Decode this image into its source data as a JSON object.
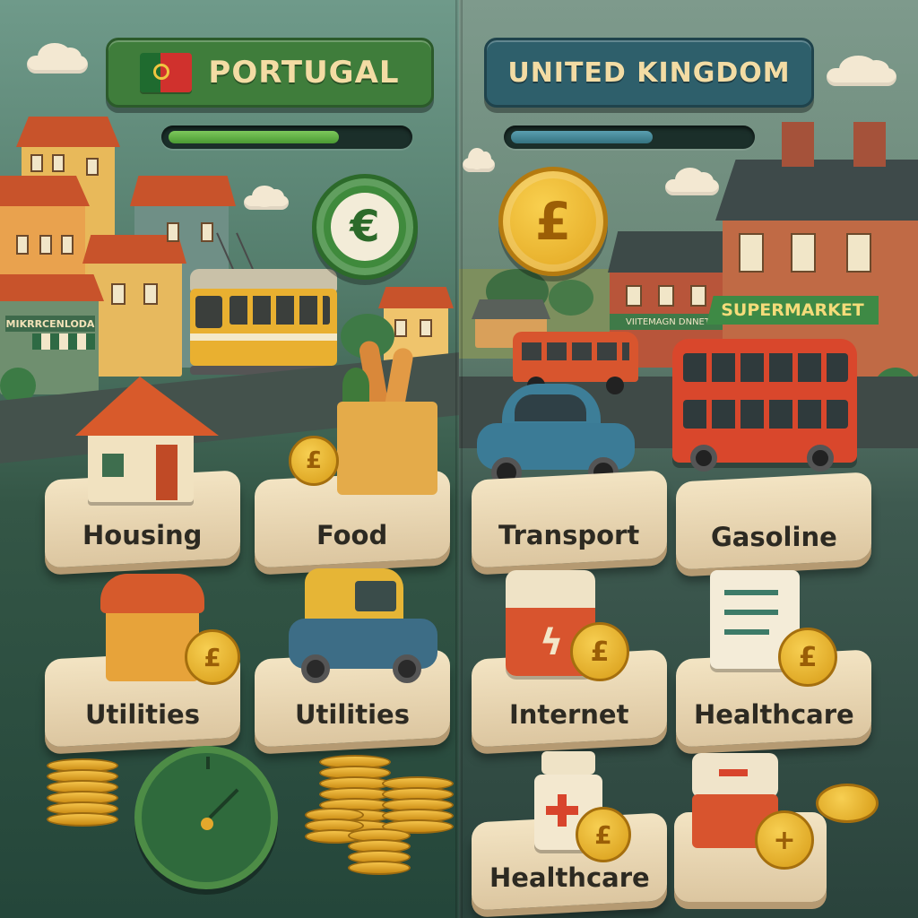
{
  "portugal": {
    "title": "PORTUGAL",
    "progress": 0.72,
    "currency_symbol": "€",
    "shop_sign": "MIKRRCENLODA",
    "cards": [
      "Housing",
      "Food",
      "Utilities",
      "Utilities"
    ],
    "colors": {
      "banner": "#3f7d3b",
      "bar": "#5aa83e",
      "coin": "#3f8a3c"
    }
  },
  "uk": {
    "title": "UNITED KINGDOM",
    "progress": 0.6,
    "currency_symbol": "£",
    "shop_sign_small": "VIITEMAGN DNNET",
    "shop_sign": "SUPERMARKET",
    "cards": [
      "Transport",
      "Gasoline",
      "Internet",
      "Healthcare",
      "Healthcare"
    ],
    "colors": {
      "banner": "#2e5f6b",
      "bar": "#3a7f8e",
      "coin": "#e9b52a"
    }
  },
  "icons": [
    "portugal-flag-icon",
    "euro-coin-icon",
    "pound-coin-icon",
    "house-icon",
    "grocery-bag-icon",
    "tram-icon",
    "double-decker-bus-icon",
    "car-icon",
    "gauge-icon",
    "medicine-bottle-icon",
    "document-icon"
  ]
}
